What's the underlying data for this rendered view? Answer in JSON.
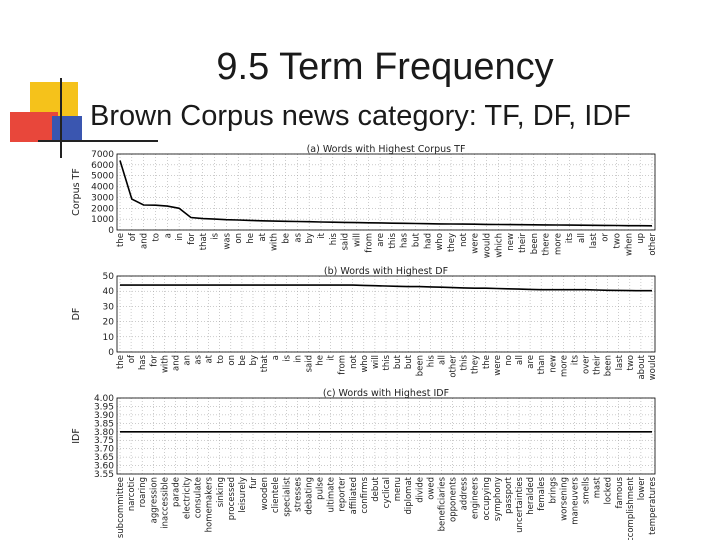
{
  "slide": {
    "title": "9.5 Term Frequency",
    "subtitle": "Brown Corpus news category: TF, DF, IDF",
    "colors": {
      "decor_yellow": "#f5c21b",
      "decor_red": "#e8473b",
      "decor_blue": "#3a56b0",
      "line": "#000000"
    }
  },
  "chart_data": [
    {
      "type": "line",
      "title": "(a) Words with Highest Corpus TF",
      "ylabel": "Corpus TF",
      "xlabel": "",
      "ylim": [
        0,
        7000
      ],
      "yticks": [
        "0",
        "1000",
        "2000",
        "3000",
        "4000",
        "5000",
        "6000",
        "7000"
      ],
      "grid": true,
      "categories": [
        "the",
        "of",
        "and",
        "to",
        "a",
        "in",
        "for",
        "that",
        "is",
        "was",
        "on",
        "he",
        "at",
        "with",
        "be",
        "as",
        "by",
        "it",
        "his",
        "said",
        "will",
        "from",
        "are",
        "this",
        "has",
        "but",
        "had",
        "who",
        "they",
        "not",
        "were",
        "would",
        "which",
        "new",
        "their",
        "been",
        "there",
        "more",
        "its",
        "all",
        "last",
        "or",
        "two",
        "when",
        "up",
        "other"
      ],
      "values": [
        6400,
        2850,
        2300,
        2280,
        2200,
        2000,
        1150,
        1050,
        1000,
        950,
        920,
        880,
        850,
        820,
        800,
        780,
        760,
        740,
        720,
        700,
        680,
        660,
        650,
        630,
        620,
        600,
        580,
        560,
        550,
        540,
        530,
        520,
        510,
        500,
        490,
        480,
        470,
        460,
        450,
        440,
        430,
        420,
        410,
        400,
        395,
        390
      ]
    },
    {
      "type": "line",
      "title": "(b) Words with Highest DF",
      "ylabel": "DF",
      "xlabel": "",
      "ylim": [
        0,
        50
      ],
      "yticks": [
        "0",
        "10",
        "20",
        "30",
        "40",
        "50"
      ],
      "grid": true,
      "categories": [
        "the",
        "of",
        "has",
        "for",
        "with",
        "and",
        "an",
        "as",
        "at",
        "to",
        "on",
        "be",
        "by",
        "that",
        "a",
        "is",
        "in",
        "said",
        "he",
        "it",
        "from",
        "not",
        "who",
        "will",
        "this",
        "but",
        "but",
        "been",
        "his",
        "all",
        "other",
        "this",
        "they",
        "the",
        "were",
        "no",
        "all",
        "are",
        "than",
        "new",
        "more",
        "its",
        "over",
        "their",
        "been",
        "last",
        "two",
        "about",
        "would"
      ],
      "values": [
        44,
        44,
        44,
        44,
        44,
        44,
        44,
        44,
        44,
        44,
        44,
        44,
        44,
        44,
        44,
        44,
        44,
        44,
        44,
        44,
        44,
        44,
        43.8,
        43.6,
        43.4,
        43.2,
        43,
        43,
        42.8,
        42.6,
        42.4,
        42.2,
        42,
        42,
        41.8,
        41.6,
        41.4,
        41.2,
        41,
        41,
        41,
        41,
        41,
        40.8,
        40.6,
        40.5,
        40.4,
        40.3,
        40.3
      ]
    },
    {
      "type": "line",
      "title": "(c) Words with Highest IDF",
      "ylabel": "IDF",
      "xlabel": "",
      "ylim": [
        3.55,
        4.0
      ],
      "yticks": [
        "3.55",
        "3.60",
        "3.65",
        "3.70",
        "3.75",
        "3.80",
        "3.85",
        "3.90",
        "3.95",
        "4.00"
      ],
      "grid": true,
      "categories": [
        "subcommittee",
        "narcotic",
        "roaring",
        "aggression",
        "inaccessible",
        "parade",
        "electricity",
        "consulate",
        "homemakers",
        "sinking",
        "processed",
        "leisurely",
        "fur",
        "wooden",
        "clientele",
        "specialist",
        "stresses",
        "debating",
        "pulse",
        "ultimate",
        "reporter",
        "affiliated",
        "confirms",
        "debut",
        "cyclical",
        "menu",
        "diplomat",
        "divide",
        "owed",
        "beneficiaries",
        "opponents",
        "address",
        "engineers",
        "occupying",
        "symphony",
        "passport",
        "uncertainties",
        "heralded",
        "females",
        "brings",
        "worsening",
        "maneuvers",
        "smells",
        "mast",
        "locked",
        "famous",
        "accomplishment",
        "lower",
        "temperatures"
      ],
      "values": [
        3.8,
        3.8,
        3.8,
        3.8,
        3.8,
        3.8,
        3.8,
        3.8,
        3.8,
        3.8,
        3.8,
        3.8,
        3.8,
        3.8,
        3.8,
        3.8,
        3.8,
        3.8,
        3.8,
        3.8,
        3.8,
        3.8,
        3.8,
        3.8,
        3.8,
        3.8,
        3.8,
        3.8,
        3.8,
        3.8,
        3.8,
        3.8,
        3.8,
        3.8,
        3.8,
        3.8,
        3.8,
        3.8,
        3.8,
        3.8,
        3.8,
        3.8,
        3.8,
        3.8,
        3.8,
        3.8,
        3.8,
        3.8,
        3.8
      ]
    }
  ]
}
